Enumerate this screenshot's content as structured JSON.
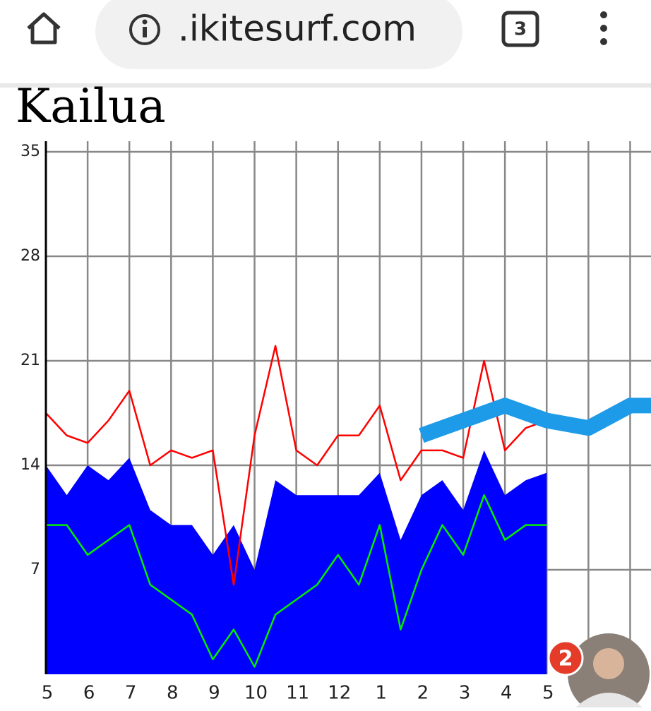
{
  "browser": {
    "url": ".ikitesurf.com",
    "tab_count": "3"
  },
  "page": {
    "title": "Kailua"
  },
  "notification": {
    "badge": "2"
  },
  "chart_data": {
    "type": "line",
    "categories": [
      "5",
      "6",
      "7",
      "8",
      "9",
      "10",
      "11",
      "12",
      "1",
      "2",
      "3",
      "4",
      "5",
      null,
      null
    ],
    "xlim": [
      0,
      14.5
    ],
    "ylim": [
      0,
      35
    ],
    "yticks": [
      7,
      14,
      21,
      28,
      35
    ],
    "grid": true,
    "x": [
      0,
      0.5,
      1,
      1.5,
      2,
      2.5,
      3,
      3.5,
      4,
      4.5,
      5,
      5.5,
      6,
      6.5,
      7,
      7.5,
      8,
      8.5,
      9,
      9.5,
      10,
      10.5,
      11,
      11.5,
      12
    ],
    "series": [
      {
        "kind": "area",
        "color": "#0000ff",
        "values": [
          14,
          12,
          14,
          13,
          14.5,
          11,
          10,
          10,
          8,
          10,
          7,
          13,
          12,
          12,
          12,
          12,
          13.5,
          9,
          12,
          13,
          11,
          15,
          12,
          13,
          13.5
        ]
      },
      {
        "kind": "line",
        "color": "#ff0000",
        "values": [
          17.5,
          16,
          15.5,
          17,
          19,
          14,
          15,
          14.5,
          15,
          6,
          16,
          22,
          15,
          14,
          16,
          16,
          18,
          13,
          15,
          15,
          14.5,
          21,
          15,
          16.5,
          17
        ]
      },
      {
        "kind": "line",
        "color": "#00ee00",
        "values": [
          10,
          10,
          8,
          9,
          10,
          6,
          5,
          4,
          1,
          3,
          0.5,
          4,
          5,
          6,
          8,
          6,
          10,
          3,
          7,
          10,
          8,
          12,
          9,
          10,
          10
        ]
      },
      {
        "kind": "band",
        "color": "#1e9be8",
        "x": [
          9,
          10,
          11,
          12,
          13,
          14,
          14.5
        ],
        "values": [
          16,
          17,
          18,
          17,
          16.5,
          18,
          18
        ]
      }
    ]
  }
}
